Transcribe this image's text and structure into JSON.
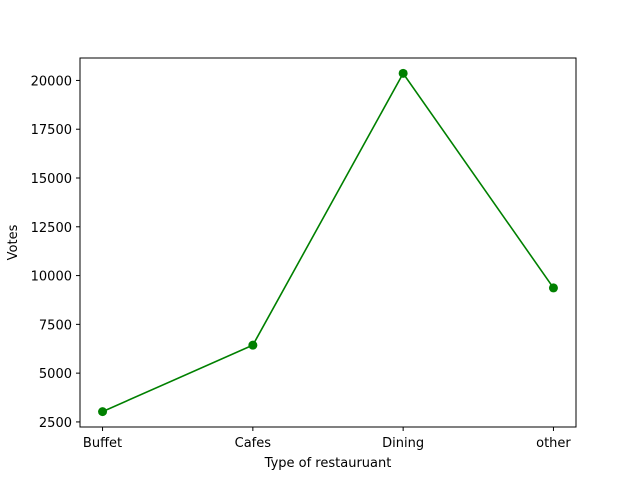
{
  "chart_data": {
    "type": "line",
    "title": "",
    "xlabel": "Type of restauruant",
    "ylabel": "Votes",
    "categories": [
      "Buffet",
      "Cafes",
      "Dining",
      "other"
    ],
    "series": [
      {
        "values": [
          3028,
          6434,
          20363,
          9367
        ]
      }
    ],
    "ylim": [
      2240,
      21150
    ],
    "yticks": [
      2500,
      5000,
      7500,
      10000,
      12500,
      15000,
      17500,
      20000
    ],
    "grid": false,
    "color": "#008000",
    "marker": "circle"
  }
}
